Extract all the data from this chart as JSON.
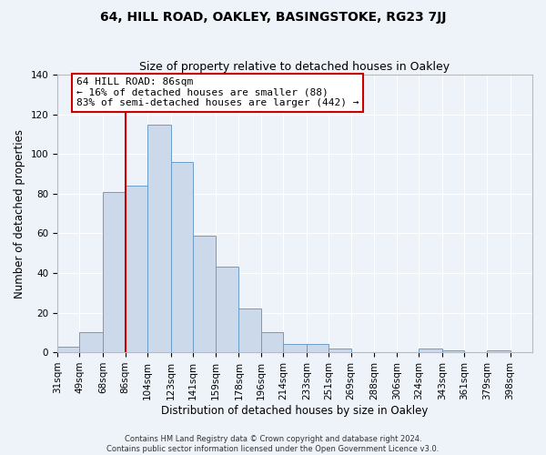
{
  "title": "64, HILL ROAD, OAKLEY, BASINGSTOKE, RG23 7JJ",
  "subtitle": "Size of property relative to detached houses in Oakley",
  "xlabel": "Distribution of detached houses by size in Oakley",
  "ylabel": "Number of detached properties",
  "bar_labels": [
    "31sqm",
    "49sqm",
    "68sqm",
    "86sqm",
    "104sqm",
    "123sqm",
    "141sqm",
    "159sqm",
    "178sqm",
    "196sqm",
    "214sqm",
    "233sqm",
    "251sqm",
    "269sqm",
    "288sqm",
    "306sqm",
    "324sqm",
    "343sqm",
    "361sqm",
    "379sqm",
    "398sqm"
  ],
  "bar_values": [
    3,
    10,
    81,
    84,
    115,
    96,
    59,
    43,
    22,
    10,
    4,
    4,
    2,
    0,
    0,
    0,
    2,
    1,
    0,
    1,
    0
  ],
  "bin_edges": [
    31,
    49,
    68,
    86,
    104,
    123,
    141,
    159,
    178,
    196,
    214,
    233,
    251,
    269,
    288,
    306,
    324,
    343,
    361,
    379,
    398,
    416
  ],
  "bar_color": "#ccd9ea",
  "bar_edge_color": "#6b9dc8",
  "red_line_x": 86,
  "ylim": [
    0,
    140
  ],
  "yticks": [
    0,
    20,
    40,
    60,
    80,
    100,
    120,
    140
  ],
  "annotation_title": "64 HILL ROAD: 86sqm",
  "annotation_line1": "← 16% of detached houses are smaller (88)",
  "annotation_line2": "83% of semi-detached houses are larger (442) →",
  "annotation_box_color": "#ffffff",
  "annotation_box_edge_color": "#cc0000",
  "footer1": "Contains HM Land Registry data © Crown copyright and database right 2024.",
  "footer2": "Contains public sector information licensed under the Open Government Licence v3.0.",
  "bg_color": "#eef2f9",
  "grid_color": "#ffffff",
  "title_fontsize": 10,
  "subtitle_fontsize": 9,
  "axis_label_fontsize": 8.5,
  "tick_fontsize": 7.5,
  "footer_fontsize": 6
}
